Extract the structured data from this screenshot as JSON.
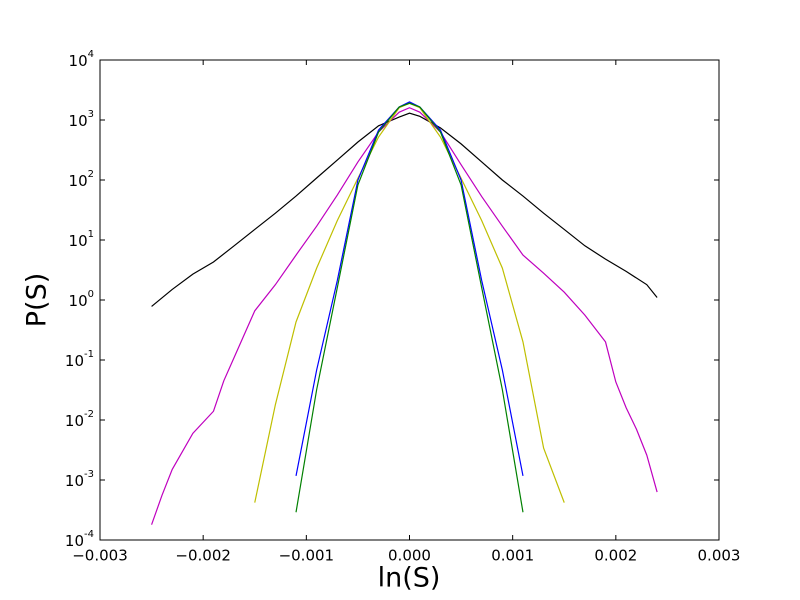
{
  "chart_data": {
    "type": "line",
    "xlabel": "ln(S)",
    "ylabel": "P(S)",
    "log_y": true,
    "xlim": [
      -0.003,
      0.003
    ],
    "ylim": [
      0.0001,
      10000
    ],
    "xticks": [
      {
        "value": -0.003,
        "label": "−0.003"
      },
      {
        "value": -0.002,
        "label": "−0.002"
      },
      {
        "value": -0.001,
        "label": "−0.001"
      },
      {
        "value": 0,
        "label": "0.000"
      },
      {
        "value": 0.001,
        "label": "0.001"
      },
      {
        "value": 0.002,
        "label": "0.002"
      },
      {
        "value": 0.003,
        "label": "0.003"
      }
    ],
    "yticks": [
      {
        "value": 0.0001,
        "label": "10",
        "exponent": "-4"
      },
      {
        "value": 0.001,
        "label": "10",
        "exponent": "-3"
      },
      {
        "value": 0.01,
        "label": "10",
        "exponent": "-2"
      },
      {
        "value": 0.1,
        "label": "10",
        "exponent": "-1"
      },
      {
        "value": 1,
        "label": "10",
        "exponent": "0"
      },
      {
        "value": 10,
        "label": "10",
        "exponent": "1"
      },
      {
        "value": 100,
        "label": "10",
        "exponent": "2"
      },
      {
        "value": 1000,
        "label": "10",
        "exponent": "3"
      },
      {
        "value": 10000,
        "label": "10",
        "exponent": "4"
      }
    ],
    "series": [
      {
        "color": "#000000",
        "x": [
          -0.0025,
          -0.0023,
          -0.0021,
          -0.0019,
          -0.0017,
          -0.0015,
          -0.0013,
          -0.0011,
          -0.0009,
          -0.0007,
          -0.0005,
          -0.0003,
          -0.0001,
          0,
          0.0001,
          0.0003,
          0.0005,
          0.0007,
          0.0009,
          0.0011,
          0.0013,
          0.0015,
          0.0017,
          0.0019,
          0.0021,
          0.0023,
          0.0024
        ],
        "values": [
          0.78,
          1.5,
          2.7,
          4.3,
          8,
          15,
          28,
          54,
          108,
          215,
          430,
          800,
          1120,
          1300,
          1150,
          740,
          400,
          200,
          100,
          54,
          28,
          15,
          8,
          4.8,
          3.0,
          1.8,
          1.1
        ]
      },
      {
        "color": "#bf00bf",
        "x": [
          -0.0025,
          -0.0024,
          -0.0023,
          -0.0021,
          -0.0019,
          -0.0018,
          -0.0017,
          -0.0015,
          -0.0013,
          -0.0011,
          -0.0009,
          -0.0007,
          -0.0005,
          -0.0003,
          -0.0001,
          0,
          0.0001,
          0.0003,
          0.0005,
          0.0007,
          0.0009,
          0.0011,
          0.0013,
          0.0015,
          0.0017,
          0.0019,
          0.002,
          0.0021,
          0.0022,
          0.0023,
          0.0024
        ],
        "values": [
          0.00018,
          0.00055,
          0.0015,
          0.006,
          0.014,
          0.045,
          0.11,
          0.66,
          1.8,
          5.6,
          17,
          56,
          200,
          630,
          1350,
          1600,
          1350,
          630,
          180,
          53,
          17,
          5.6,
          2.8,
          1.35,
          0.56,
          0.2,
          0.043,
          0.016,
          0.007,
          0.0026,
          0.00063
        ]
      },
      {
        "color": "#bfbf00",
        "x": [
          -0.0015,
          -0.0013,
          -0.0011,
          -0.0009,
          -0.0007,
          -0.0005,
          -0.0003,
          -0.0001,
          0,
          0.0001,
          0.0003,
          0.0005,
          0.0007,
          0.0009,
          0.0011,
          0.0013,
          0.0015
        ],
        "values": [
          0.00042,
          0.018,
          0.43,
          3.4,
          21,
          107,
          520,
          1600,
          1900,
          1600,
          520,
          107,
          21,
          3.4,
          0.2,
          0.0034,
          0.00042
        ]
      },
      {
        "color": "#0000ff",
        "x": [
          -0.0011,
          -0.0009,
          -0.0007,
          -0.0005,
          -0.0003,
          -0.0001,
          0,
          0.0001,
          0.0003,
          0.0005,
          0.0007,
          0.0009,
          0.0011
        ],
        "values": [
          0.00117,
          0.068,
          2.1,
          100,
          680,
          1650,
          2000,
          1650,
          680,
          100,
          2.1,
          0.068,
          0.00117
        ]
      },
      {
        "color": "#008000",
        "x": [
          -0.0011,
          -0.0009,
          -0.0007,
          -0.0005,
          -0.0003,
          -0.0001,
          0,
          0.0001,
          0.0003,
          0.0005,
          0.0007,
          0.0009,
          0.0011
        ],
        "values": [
          0.00029,
          0.032,
          1.6,
          83,
          630,
          1650,
          1900,
          1650,
          630,
          83,
          1.6,
          0.032,
          0.00029
        ]
      }
    ]
  }
}
